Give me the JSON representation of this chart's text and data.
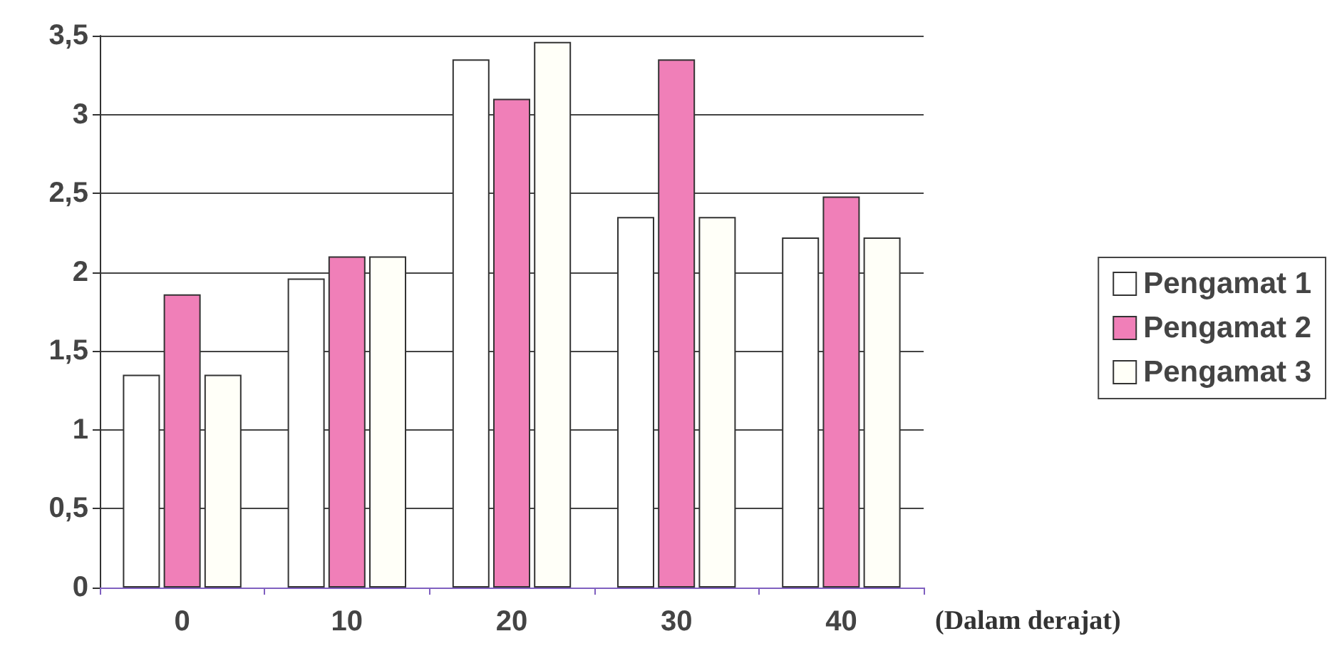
{
  "chart_data": {
    "type": "bar",
    "categories": [
      "0",
      "10",
      "20",
      "30",
      "40"
    ],
    "xlabel": "(Dalam derajat)",
    "series": [
      {
        "name": "Pengamat 1",
        "color": "#ffffff",
        "values": [
          1.35,
          1.96,
          3.35,
          2.35,
          2.22
        ]
      },
      {
        "name": "Pengamat 2",
        "color": "#f07fb8",
        "values": [
          1.86,
          2.1,
          3.1,
          3.35,
          2.48
        ]
      },
      {
        "name": "Pengamat 3",
        "color": "#fffff8",
        "values": [
          1.35,
          2.1,
          3.46,
          2.35,
          2.22
        ]
      }
    ],
    "ylim": [
      0,
      3.5
    ],
    "yticks": [
      {
        "value": 0,
        "label": "0"
      },
      {
        "value": 0.5,
        "label": "0,5"
      },
      {
        "value": 1,
        "label": "1"
      },
      {
        "value": 1.5,
        "label": "1,5"
      },
      {
        "value": 2,
        "label": "2"
      },
      {
        "value": 2.5,
        "label": "2,5"
      },
      {
        "value": 3,
        "label": "3"
      },
      {
        "value": 3.5,
        "label": "3,5"
      }
    ],
    "grid": "y",
    "legend": "right"
  }
}
